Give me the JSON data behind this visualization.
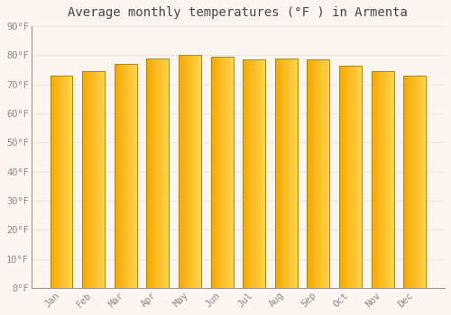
{
  "title": "Average monthly temperatures (°F ) in Armenta",
  "months": [
    "Jan",
    "Feb",
    "Mar",
    "Apr",
    "May",
    "Jun",
    "Jul",
    "Aug",
    "Sep",
    "Oct",
    "Nov",
    "Dec"
  ],
  "values": [
    73,
    74.5,
    77,
    79,
    80,
    79.5,
    78.5,
    79,
    78.5,
    76.5,
    74.5,
    73
  ],
  "bar_color_left": "#F5A800",
  "bar_color_right": "#FFD54F",
  "bar_edge_color": "#B8860B",
  "background_color": "#fdf5f0",
  "plot_bg_color": "#fdf5f0",
  "grid_color": "#e8e8e8",
  "ylim": [
    0,
    90
  ],
  "yticks": [
    0,
    10,
    20,
    30,
    40,
    50,
    60,
    70,
    80,
    90
  ],
  "title_fontsize": 10,
  "tick_fontsize": 7.5,
  "tick_color": "#888888",
  "title_color": "#444444",
  "title_font": "monospace",
  "bar_width": 0.7
}
